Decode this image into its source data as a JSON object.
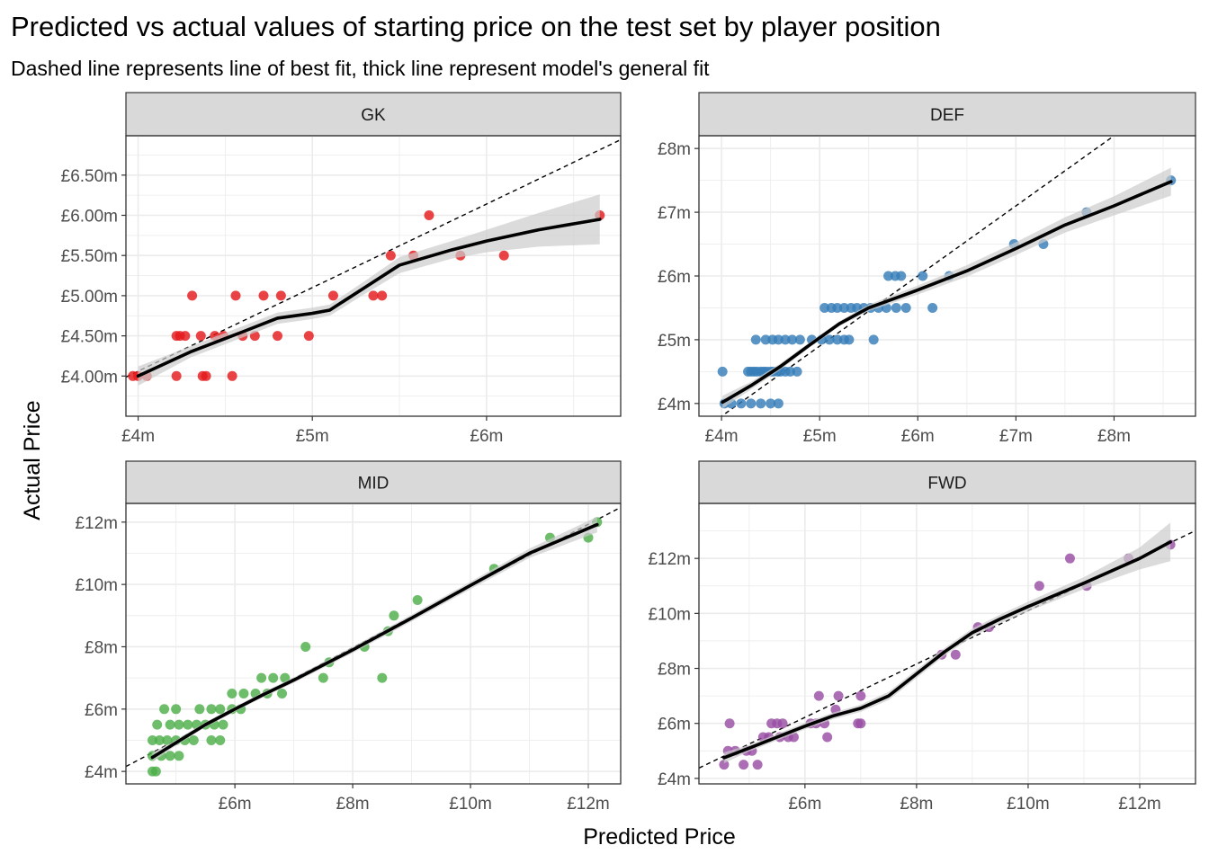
{
  "title": "Predicted vs actual values of starting price on the test set by player position",
  "subtitle": "Dashed line represents line of best fit, thick line represent model's general fit",
  "xlabel": "Predicted Price",
  "ylabel": "Actual Price",
  "colors": {
    "GK": "#e41a1c",
    "DEF": "#377eb8",
    "MID": "#4daf4a",
    "FWD": "#984ea3",
    "strip": "#d9d9d9",
    "grid": "#ebebeb",
    "ribbon": "#cccccc"
  },
  "chart_data": [
    {
      "type": "scatter",
      "panel": "GK",
      "xlim": [
        3.93,
        6.77
      ],
      "ylim": [
        3.5,
        6.99
      ],
      "x_ticks": [
        4,
        5,
        6
      ],
      "x_tick_labels": [
        "£4m",
        "£5m",
        "£6m"
      ],
      "y_ticks": [
        4.0,
        4.5,
        5.0,
        5.5,
        6.0,
        6.5
      ],
      "y_tick_labels": [
        "£4.00m",
        "£4.50m",
        "£5.00m",
        "£5.50m",
        "£6.00m",
        "£6.50m"
      ],
      "points": [
        [
          3.97,
          4.0
        ],
        [
          4.0,
          4.0
        ],
        [
          4.05,
          4.0
        ],
        [
          4.22,
          4.0
        ],
        [
          4.37,
          4.0
        ],
        [
          4.39,
          4.0
        ],
        [
          4.54,
          4.0
        ],
        [
          4.22,
          4.5
        ],
        [
          4.24,
          4.5
        ],
        [
          4.27,
          4.5
        ],
        [
          4.36,
          4.5
        ],
        [
          4.44,
          4.5
        ],
        [
          4.49,
          4.5
        ],
        [
          4.6,
          4.5
        ],
        [
          4.67,
          4.5
        ],
        [
          4.8,
          4.5
        ],
        [
          4.98,
          4.5
        ],
        [
          4.31,
          5.0
        ],
        [
          4.56,
          5.0
        ],
        [
          4.72,
          5.0
        ],
        [
          4.82,
          5.0
        ],
        [
          5.12,
          5.0
        ],
        [
          5.35,
          5.0
        ],
        [
          5.4,
          5.0
        ],
        [
          5.45,
          5.5
        ],
        [
          5.58,
          5.5
        ],
        [
          5.85,
          5.5
        ],
        [
          6.1,
          5.5
        ],
        [
          5.67,
          6.0
        ],
        [
          6.65,
          6.0
        ]
      ],
      "smooth": [
        [
          4.0,
          4.0
        ],
        [
          4.3,
          4.3
        ],
        [
          4.6,
          4.55
        ],
        [
          4.8,
          4.72
        ],
        [
          5.0,
          4.78
        ],
        [
          5.1,
          4.82
        ],
        [
          5.3,
          5.1
        ],
        [
          5.5,
          5.38
        ],
        [
          5.8,
          5.57
        ],
        [
          6.0,
          5.68
        ],
        [
          6.3,
          5.82
        ],
        [
          6.65,
          5.95
        ]
      ],
      "band": [
        0.12,
        0.07,
        0.07,
        0.07,
        0.07,
        0.07,
        0.08,
        0.1,
        0.11,
        0.14,
        0.21,
        0.31
      ],
      "fit": [
        -0.1,
        1.04
      ]
    },
    {
      "type": "scatter",
      "panel": "DEF",
      "xlim": [
        3.77,
        8.83
      ],
      "ylim": [
        3.8,
        8.2
      ],
      "x_ticks": [
        4,
        5,
        6,
        7,
        8
      ],
      "x_tick_labels": [
        "£4m",
        "£5m",
        "£6m",
        "£7m",
        "£8m"
      ],
      "y_ticks": [
        4,
        5,
        6,
        7,
        8
      ],
      "y_tick_labels": [
        "£4m",
        "£5m",
        "£6m",
        "£7m",
        "£8m"
      ],
      "points": [
        [
          4.01,
          4.5
        ],
        [
          4.03,
          4.0
        ],
        [
          4.1,
          4.0
        ],
        [
          4.2,
          4.0
        ],
        [
          4.3,
          4.0
        ],
        [
          4.4,
          4.0
        ],
        [
          4.5,
          4.0
        ],
        [
          4.58,
          4.0
        ],
        [
          4.27,
          4.5
        ],
        [
          4.3,
          4.5
        ],
        [
          4.33,
          4.5
        ],
        [
          4.36,
          4.5
        ],
        [
          4.4,
          4.5
        ],
        [
          4.43,
          4.5
        ],
        [
          4.46,
          4.5
        ],
        [
          4.5,
          4.5
        ],
        [
          4.53,
          4.5
        ],
        [
          4.57,
          4.5
        ],
        [
          4.6,
          4.5
        ],
        [
          4.65,
          4.5
        ],
        [
          4.7,
          4.5
        ],
        [
          4.77,
          4.5
        ],
        [
          4.35,
          5.0
        ],
        [
          4.45,
          5.0
        ],
        [
          4.52,
          5.0
        ],
        [
          4.58,
          5.0
        ],
        [
          4.65,
          5.0
        ],
        [
          4.72,
          5.0
        ],
        [
          4.8,
          5.0
        ],
        [
          4.92,
          5.0
        ],
        [
          5.02,
          5.0
        ],
        [
          5.1,
          5.0
        ],
        [
          5.18,
          5.0
        ],
        [
          5.25,
          5.0
        ],
        [
          5.3,
          5.0
        ],
        [
          5.55,
          5.0
        ],
        [
          5.05,
          5.5
        ],
        [
          5.12,
          5.5
        ],
        [
          5.18,
          5.5
        ],
        [
          5.25,
          5.5
        ],
        [
          5.32,
          5.5
        ],
        [
          5.38,
          5.5
        ],
        [
          5.45,
          5.5
        ],
        [
          5.52,
          5.5
        ],
        [
          5.6,
          5.5
        ],
        [
          5.68,
          5.5
        ],
        [
          5.78,
          5.5
        ],
        [
          5.88,
          5.5
        ],
        [
          6.15,
          5.5
        ],
        [
          5.7,
          6.0
        ],
        [
          5.77,
          6.0
        ],
        [
          5.83,
          6.0
        ],
        [
          6.05,
          6.0
        ],
        [
          6.32,
          6.0
        ],
        [
          6.98,
          6.5
        ],
        [
          7.28,
          6.5
        ],
        [
          7.72,
          7.0
        ],
        [
          8.58,
          7.5
        ]
      ],
      "smooth": [
        [
          4.01,
          4.02
        ],
        [
          4.3,
          4.28
        ],
        [
          4.6,
          4.58
        ],
        [
          4.9,
          4.92
        ],
        [
          5.2,
          5.25
        ],
        [
          5.5,
          5.5
        ],
        [
          6.0,
          5.78
        ],
        [
          6.5,
          6.08
        ],
        [
          7.0,
          6.43
        ],
        [
          7.5,
          6.8
        ],
        [
          8.0,
          7.1
        ],
        [
          8.58,
          7.48
        ]
      ],
      "band": [
        0.1,
        0.06,
        0.05,
        0.04,
        0.04,
        0.05,
        0.07,
        0.09,
        0.1,
        0.12,
        0.15,
        0.22
      ],
      "fit": [
        -0.6,
        1.1
      ]
    },
    {
      "type": "scatter",
      "panel": "MID",
      "xlim": [
        4.15,
        12.55
      ],
      "ylim": [
        3.6,
        12.6
      ],
      "x_ticks": [
        6,
        8,
        10,
        12
      ],
      "x_tick_labels": [
        "£6m",
        "£8m",
        "£10m",
        "£12m"
      ],
      "y_ticks": [
        4,
        6,
        8,
        10,
        12
      ],
      "y_tick_labels": [
        "£4m",
        "£6m",
        "£8m",
        "£10m",
        "£12m"
      ],
      "points": [
        [
          4.6,
          4.0
        ],
        [
          4.66,
          4.0
        ],
        [
          4.6,
          4.5
        ],
        [
          4.75,
          4.5
        ],
        [
          4.9,
          4.5
        ],
        [
          5.05,
          4.5
        ],
        [
          4.6,
          5.0
        ],
        [
          4.72,
          5.0
        ],
        [
          4.85,
          5.0
        ],
        [
          5.0,
          5.0
        ],
        [
          5.15,
          5.0
        ],
        [
          5.3,
          5.0
        ],
        [
          5.6,
          5.0
        ],
        [
          5.75,
          5.0
        ],
        [
          4.68,
          5.5
        ],
        [
          4.9,
          5.5
        ],
        [
          5.05,
          5.5
        ],
        [
          5.2,
          5.5
        ],
        [
          5.35,
          5.5
        ],
        [
          5.5,
          5.5
        ],
        [
          5.65,
          5.5
        ],
        [
          5.8,
          5.5
        ],
        [
          4.8,
          6.0
        ],
        [
          5.0,
          6.0
        ],
        [
          5.4,
          6.0
        ],
        [
          5.6,
          6.0
        ],
        [
          5.75,
          6.0
        ],
        [
          5.95,
          6.0
        ],
        [
          6.1,
          6.0
        ],
        [
          5.95,
          6.5
        ],
        [
          6.15,
          6.5
        ],
        [
          6.35,
          6.5
        ],
        [
          6.55,
          6.5
        ],
        [
          6.8,
          6.5
        ],
        [
          6.45,
          7.0
        ],
        [
          6.65,
          7.0
        ],
        [
          6.85,
          7.0
        ],
        [
          7.5,
          7.0
        ],
        [
          8.5,
          7.0
        ],
        [
          7.2,
          8.0
        ],
        [
          7.6,
          7.5
        ],
        [
          8.2,
          8.0
        ],
        [
          8.6,
          8.5
        ],
        [
          8.7,
          9.0
        ],
        [
          9.1,
          9.5
        ],
        [
          10.4,
          10.5
        ],
        [
          11.35,
          11.5
        ],
        [
          12.0,
          11.5
        ],
        [
          12.15,
          12.0
        ]
      ],
      "smooth": [
        [
          4.6,
          4.45
        ],
        [
          5.0,
          4.92
        ],
        [
          5.5,
          5.5
        ],
        [
          6.0,
          6.0
        ],
        [
          6.5,
          6.48
        ],
        [
          7.0,
          6.93
        ],
        [
          8.0,
          7.9
        ],
        [
          9.0,
          8.92
        ],
        [
          10.0,
          9.97
        ],
        [
          11.0,
          11.0
        ],
        [
          12.15,
          11.92
        ]
      ],
      "band": [
        0.15,
        0.09,
        0.08,
        0.08,
        0.08,
        0.09,
        0.1,
        0.11,
        0.12,
        0.15,
        0.25
      ],
      "fit": [
        0.05,
        0.99
      ]
    },
    {
      "type": "scatter",
      "panel": "FWD",
      "xlim": [
        4.1,
        13.0
      ],
      "ylim": [
        3.8,
        14.0
      ],
      "x_ticks": [
        6,
        8,
        10,
        12
      ],
      "x_tick_labels": [
        "£6m",
        "£8m",
        "£10m",
        "£12m"
      ],
      "y_ticks": [
        4,
        6,
        8,
        10,
        12
      ],
      "y_tick_labels": [
        "£4m",
        "£6m",
        "£8m",
        "£10m",
        "£12m"
      ],
      "points": [
        [
          4.55,
          4.5
        ],
        [
          4.62,
          5.0
        ],
        [
          4.65,
          6.0
        ],
        [
          4.75,
          5.0
        ],
        [
          4.9,
          4.5
        ],
        [
          4.95,
          5.0
        ],
        [
          5.05,
          5.0
        ],
        [
          5.15,
          4.5
        ],
        [
          5.25,
          5.5
        ],
        [
          5.35,
          5.5
        ],
        [
          5.4,
          6.0
        ],
        [
          5.5,
          6.0
        ],
        [
          5.55,
          5.5
        ],
        [
          5.6,
          6.0
        ],
        [
          5.7,
          5.5
        ],
        [
          5.8,
          5.5
        ],
        [
          6.1,
          6.0
        ],
        [
          6.2,
          6.0
        ],
        [
          6.25,
          7.0
        ],
        [
          6.35,
          6.0
        ],
        [
          6.4,
          5.5
        ],
        [
          6.55,
          6.5
        ],
        [
          6.6,
          7.0
        ],
        [
          6.95,
          6.0
        ],
        [
          7.0,
          6.0
        ],
        [
          7.0,
          7.0
        ],
        [
          8.45,
          8.5
        ],
        [
          8.7,
          8.5
        ],
        [
          9.1,
          9.5
        ],
        [
          9.3,
          9.5
        ],
        [
          10.2,
          11.0
        ],
        [
          10.75,
          12.0
        ],
        [
          11.05,
          11.0
        ],
        [
          11.8,
          12.0
        ],
        [
          12.55,
          12.5
        ]
      ],
      "smooth": [
        [
          4.55,
          4.75
        ],
        [
          5.0,
          5.1
        ],
        [
          5.5,
          5.5
        ],
        [
          6.0,
          5.9
        ],
        [
          6.5,
          6.27
        ],
        [
          7.0,
          6.55
        ],
        [
          7.5,
          7.0
        ],
        [
          8.0,
          7.8
        ],
        [
          8.5,
          8.6
        ],
        [
          9.0,
          9.3
        ],
        [
          9.5,
          9.8
        ],
        [
          10.0,
          10.25
        ],
        [
          11.0,
          11.1
        ],
        [
          12.0,
          12.0
        ],
        [
          12.55,
          12.6
        ]
      ],
      "band": [
        0.2,
        0.12,
        0.12,
        0.12,
        0.12,
        0.13,
        0.15,
        0.15,
        0.14,
        0.15,
        0.16,
        0.18,
        0.22,
        0.4,
        0.7
      ],
      "fit": [
        0.4,
        0.97
      ]
    }
  ]
}
